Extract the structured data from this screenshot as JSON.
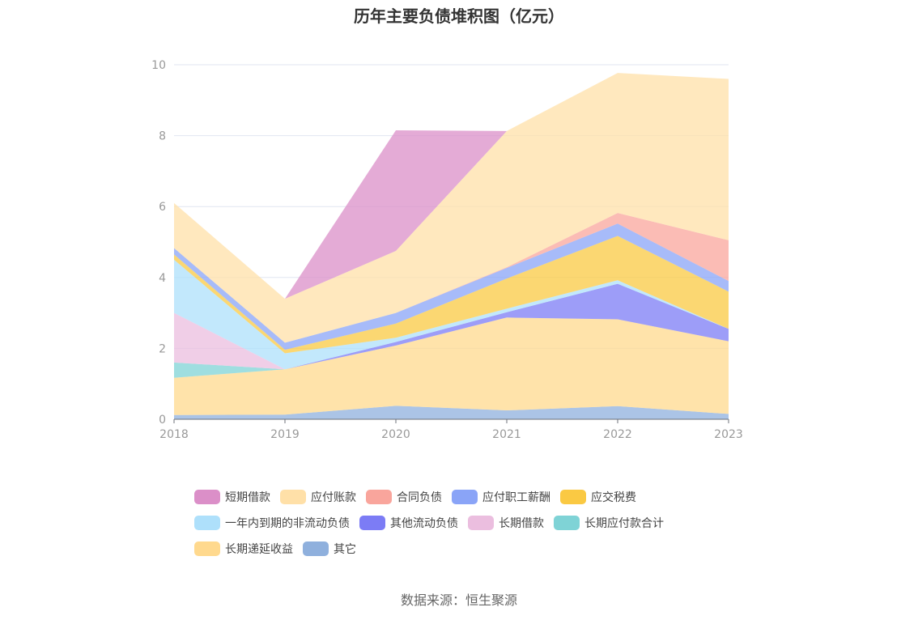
{
  "chart_data": {
    "type": "area",
    "title": "历年主要负债堆积图（亿元）",
    "x": [
      "2018",
      "2019",
      "2020",
      "2021",
      "2022",
      "2023"
    ],
    "ylim": [
      0,
      10
    ],
    "yticks": [
      0,
      2,
      4,
      6,
      8,
      10
    ],
    "grid": true,
    "legend_position": "bottom",
    "series": [
      {
        "name": "其它",
        "color": "#8fb0dd",
        "values": [
          0.12,
          0.13,
          0.38,
          0.25,
          0.37,
          0.15
        ]
      },
      {
        "name": "长期递延收益",
        "color": "#ffd98e",
        "values": [
          1.05,
          1.28,
          1.7,
          2.62,
          2.45,
          2.05
        ]
      },
      {
        "name": "长期应付款合计",
        "color": "#7fd3d6",
        "values": [
          0.43,
          0.0,
          0.0,
          0.0,
          0.0,
          0.0
        ]
      },
      {
        "name": "长期借款",
        "color": "#ebbedf",
        "values": [
          1.4,
          0.0,
          0.0,
          0.0,
          0.0,
          0.0
        ]
      },
      {
        "name": "其他流动负债",
        "color": "#7c7cf5",
        "values": [
          0.0,
          0.0,
          0.1,
          0.15,
          1.0,
          0.35
        ]
      },
      {
        "name": "一年内到期的非流动负债",
        "color": "#aee0fb",
        "values": [
          1.5,
          0.45,
          0.12,
          0.1,
          0.1,
          0.0
        ]
      },
      {
        "name": "应交税费",
        "color": "#fac943",
        "values": [
          0.15,
          0.1,
          0.4,
          0.85,
          1.25,
          1.05
        ]
      },
      {
        "name": "应付职工薪酬",
        "color": "#8aa4f7",
        "values": [
          0.18,
          0.2,
          0.3,
          0.3,
          0.35,
          0.3
        ]
      },
      {
        "name": "合同负债",
        "color": "#f9a59c",
        "values": [
          0.0,
          0.0,
          0.0,
          0.02,
          0.3,
          1.15
        ]
      },
      {
        "name": "应付账款",
        "color": "#ffe0a8",
        "values": [
          1.27,
          1.24,
          1.75,
          3.84,
          3.95,
          4.55
        ]
      },
      {
        "name": "短期借款",
        "color": "#db8fc8",
        "values": [
          0.0,
          0.0,
          3.4,
          0.0,
          0.0,
          0.0
        ]
      }
    ],
    "legend_rows": [
      [
        "短期借款",
        "应付账款",
        "合同负债",
        "应付职工薪酬",
        "应交税费"
      ],
      [
        "一年内到期的非流动负债",
        "其他流动负债",
        "长期借款",
        "长期应付款合计"
      ],
      [
        "长期递延收益",
        "其它"
      ]
    ]
  },
  "source_text": "数据来源：恒生聚源"
}
